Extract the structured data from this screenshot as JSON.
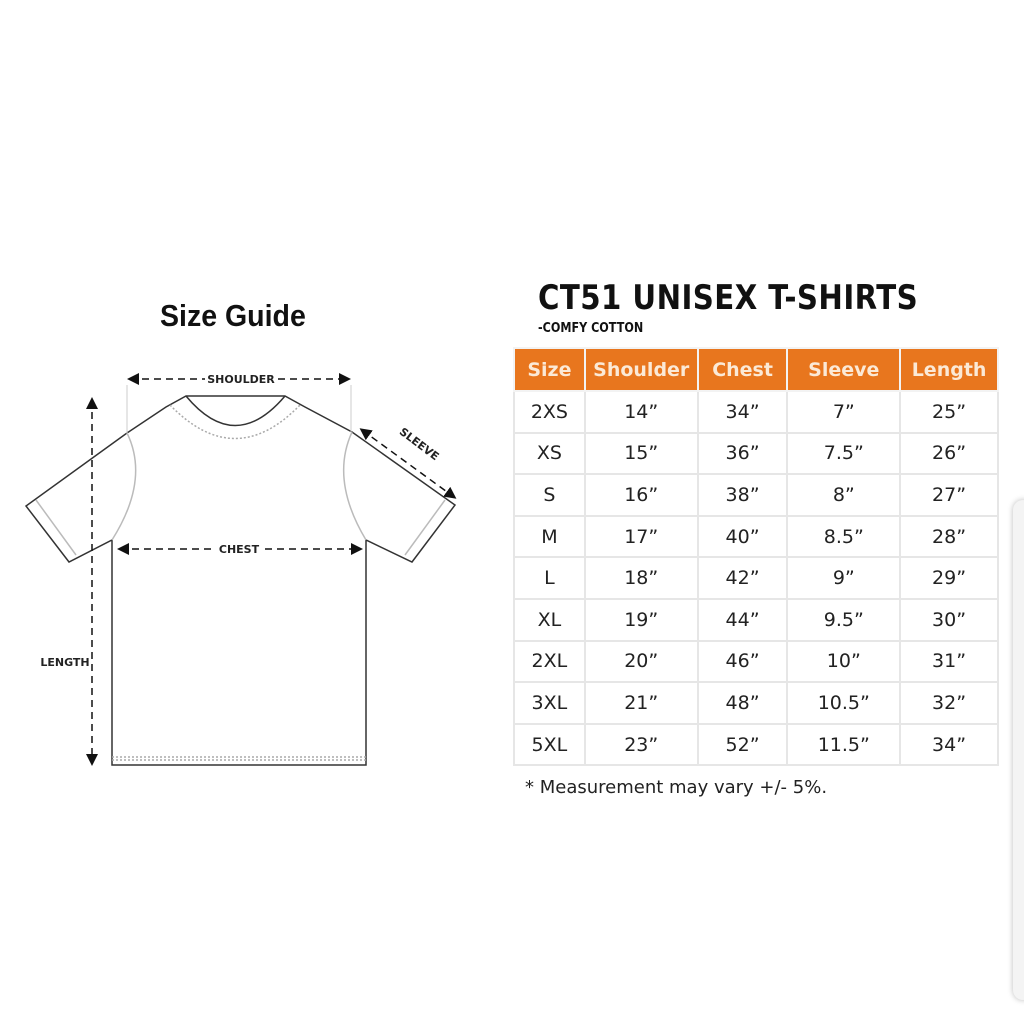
{
  "guide": {
    "title": "Size Guide",
    "labels": {
      "shoulder": "SHOULDER",
      "chest": "CHEST",
      "sleeve": "SLEEVE",
      "length": "LENGTH"
    }
  },
  "chart": {
    "title": "CT51 UNISEX T-SHIRTS",
    "subtitle": "-COMFY COTTON",
    "header_color": "#e8761e",
    "columns": [
      "Size",
      "Shoulder",
      "Chest",
      "Sleeve",
      "Length"
    ],
    "rows": [
      [
        "2XS",
        "14”",
        "34”",
        "7”",
        "25”"
      ],
      [
        "XS",
        "15”",
        "36”",
        "7.5”",
        "26”"
      ],
      [
        "S",
        "16”",
        "38”",
        "8”",
        "27”"
      ],
      [
        "M",
        "17”",
        "40”",
        "8.5”",
        "28”"
      ],
      [
        "L",
        "18”",
        "42”",
        "9”",
        "29”"
      ],
      [
        "XL",
        "19”",
        "44”",
        "9.5”",
        "30”"
      ],
      [
        "2XL",
        "20”",
        "46”",
        "10”",
        "31”"
      ],
      [
        "3XL",
        "21”",
        "48”",
        "10.5”",
        "32”"
      ],
      [
        "5XL",
        "23”",
        "52”",
        "11.5”",
        "34”"
      ]
    ],
    "note": "* Measurement may vary +/- 5%."
  }
}
